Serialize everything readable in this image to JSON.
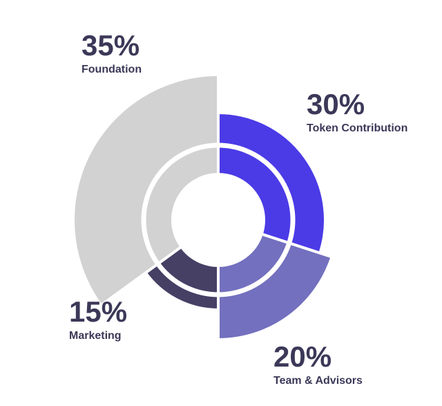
{
  "chart_data": {
    "type": "pie",
    "categories": [
      "Token Contribution",
      "Team & Advisors",
      "Marketing",
      "Foundation"
    ],
    "values": [
      30,
      20,
      15,
      35
    ],
    "value_labels": [
      "30%",
      "20%",
      "15%",
      "35%"
    ],
    "colors": [
      "#4b3be6",
      "#7370bf",
      "#454064",
      "#d2d2d2"
    ]
  }
}
